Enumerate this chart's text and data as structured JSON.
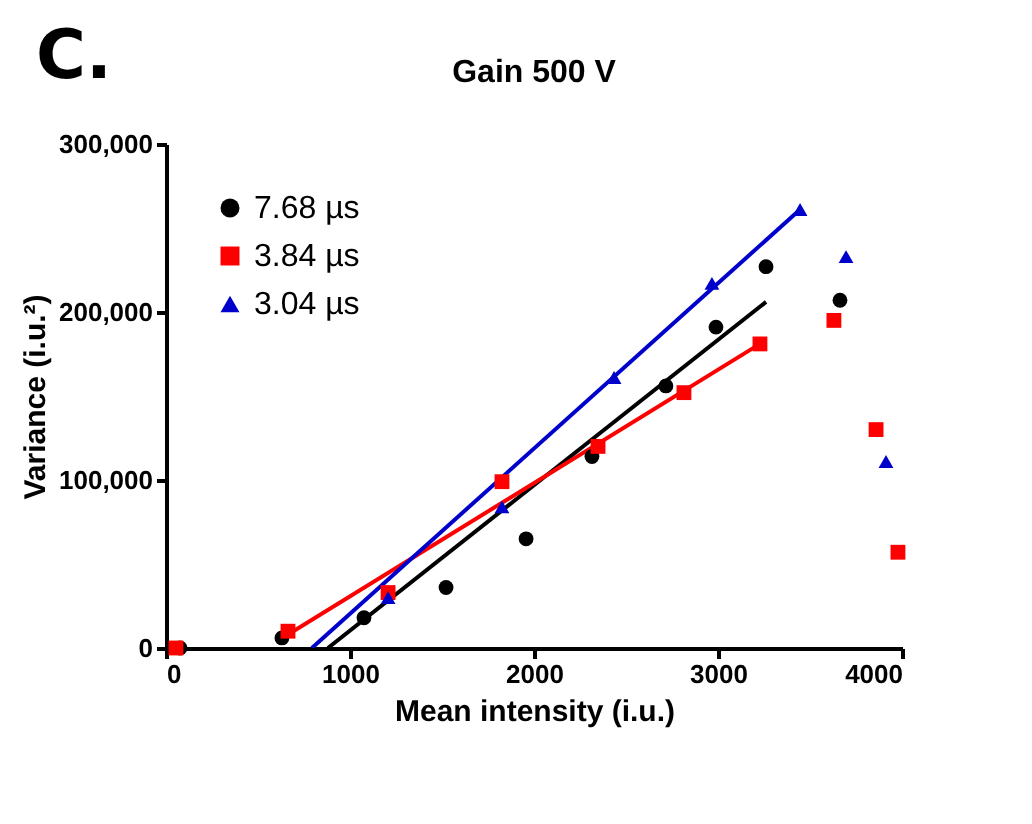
{
  "chart_data": {
    "type": "scatter",
    "title": "Gain 500 V",
    "xlabel": "Mean intensity (i.u.)",
    "ylabel": "Variance (i.u.²)",
    "annotations": [
      "C."
    ],
    "series": [
      {
        "name": "7.68 µs",
        "color": "#000000",
        "marker": "circle",
        "x": [
          76,
          630,
          1076,
          1522,
          1957,
          2315,
          2717,
          2989,
          3261,
          3663
        ],
        "values": [
          0,
          6000,
          18000,
          36000,
          65000,
          114000,
          156000,
          191000,
          227000,
          207000
        ]
      },
      {
        "name": "3.84 µs",
        "color": "#ff0000",
        "marker": "square",
        "x": [
          54,
          663,
          1207,
          1826,
          2348,
          2815,
          3228,
          3630,
          3859,
          3978
        ],
        "values": [
          0,
          10000,
          33000,
          99000,
          120000,
          152000,
          181000,
          195000,
          130000,
          57000
        ]
      },
      {
        "name": "3.04 µs",
        "color": "#0000cc",
        "marker": "triangle",
        "x": [
          1207,
          1826,
          2435,
          2967,
          3446,
          3696,
          3913
        ],
        "values": [
          30000,
          84000,
          161000,
          217000,
          261000,
          233000,
          111000
        ]
      },
      {
        "type": "line",
        "color": "#000000",
        "x": [
          880,
          3261
        ],
        "values": [
          0,
          206000
        ]
      },
      {
        "type": "line",
        "color": "#ff0000",
        "x": [
          663,
          3228
        ],
        "values": [
          8000,
          181000
        ]
      },
      {
        "type": "line",
        "color": "#0000cc",
        "x": [
          793,
          3446
        ],
        "values": [
          0,
          261000
        ]
      }
    ],
    "xlim": [
      0,
      4000
    ],
    "xticks": [
      0,
      1000,
      2000,
      3000,
      4000
    ],
    "ylim": [
      0,
      300000
    ],
    "yticks": [
      0,
      {
        "value": 100000,
        "label": "100,000"
      },
      {
        "value": 200000,
        "label": "200,000"
      },
      {
        "value": 300000,
        "label": "300,000"
      }
    ],
    "legend": "top left",
    "grid": false
  }
}
